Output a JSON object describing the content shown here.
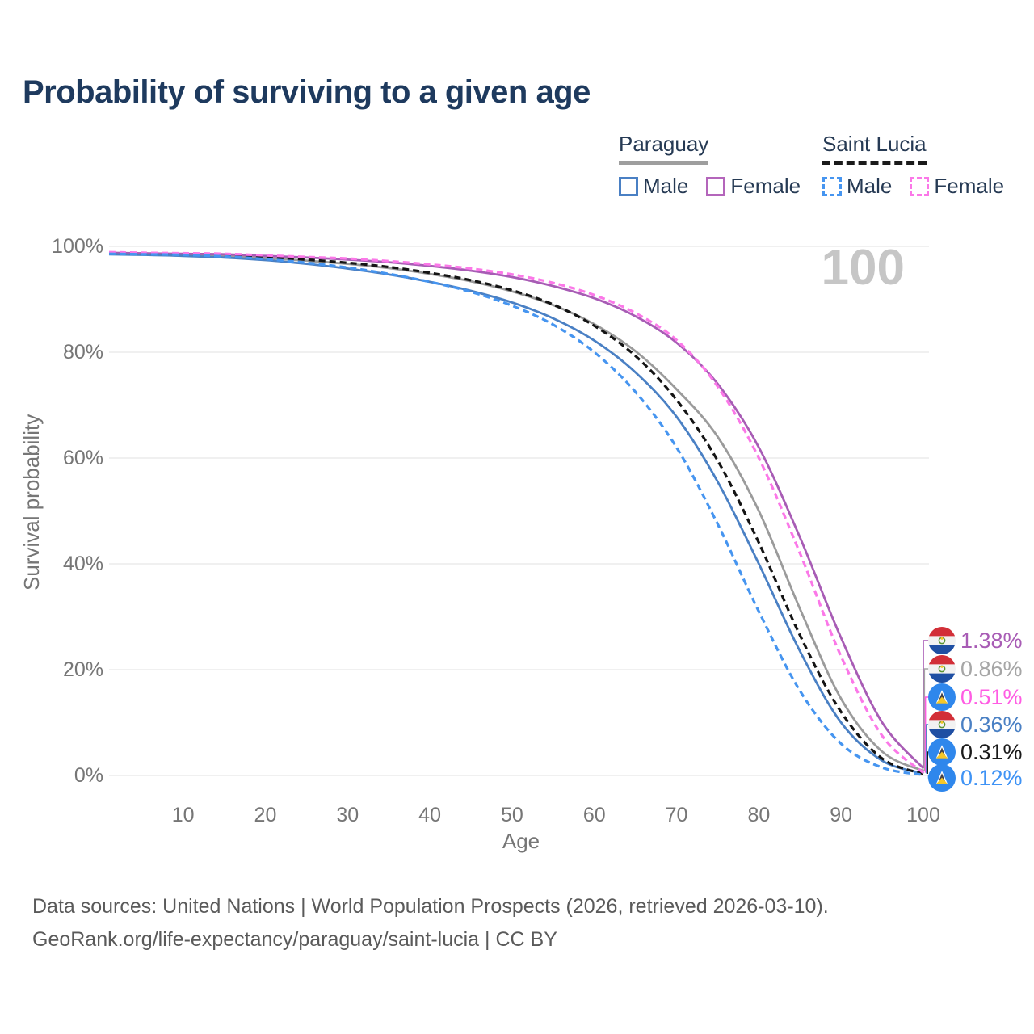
{
  "title": "Probability of surviving to a given age",
  "watermark": "100",
  "legend": {
    "groups": [
      {
        "id": "paraguay",
        "label": "Paraguay",
        "line_style": "solid",
        "underline_color": "#9e9e9e",
        "items": [
          {
            "label": "Male",
            "color": "#4a80c4"
          },
          {
            "label": "Female",
            "color": "#b465bb"
          }
        ]
      },
      {
        "id": "saint-lucia",
        "label": "Saint Lucia",
        "line_style": "dashed",
        "underline_color": "#1a1a1a",
        "items": [
          {
            "label": "Male",
            "color": "#4695f0"
          },
          {
            "label": "Female",
            "color": "#fb78e8"
          }
        ]
      }
    ]
  },
  "axes": {
    "x_title": "Age",
    "y_title": "Survival probability",
    "x_tick_labels": [
      "10",
      "20",
      "30",
      "40",
      "50",
      "60",
      "70",
      "80",
      "90",
      "100"
    ],
    "y_tick_labels": [
      "100%",
      "80%",
      "60%",
      "40%",
      "20%",
      "0%"
    ]
  },
  "chart_data": {
    "type": "line",
    "title": "Probability of surviving to a given age",
    "xlabel": "Age",
    "ylabel": "Survival probability",
    "xlim": [
      1,
      100
    ],
    "ylim": [
      0,
      100
    ],
    "grid": "horizontal-only",
    "legend_position": "top-right",
    "highlighted_age": "100",
    "x": [
      1,
      5,
      10,
      15,
      20,
      25,
      30,
      35,
      40,
      45,
      50,
      55,
      60,
      65,
      70,
      75,
      80,
      85,
      90,
      95,
      100
    ],
    "series": [
      {
        "name": "Paraguay Female",
        "country": "Paraguay",
        "sex": "Female",
        "color": "#a85cb5",
        "dash": "solid",
        "values": [
          98.8,
          98.7,
          98.6,
          98.5,
          98.2,
          97.9,
          97.5,
          97.0,
          96.3,
          95.4,
          94.2,
          92.5,
          90.2,
          86.8,
          81.8,
          74.0,
          62.0,
          45.0,
          26.0,
          10.0,
          1.38
        ]
      },
      {
        "name": "Paraguay Both Sexes",
        "country": "Paraguay",
        "sex": "All",
        "color": "#9b9b9b",
        "dash": "solid",
        "values": [
          98.6,
          98.5,
          98.4,
          98.2,
          97.8,
          97.3,
          96.7,
          95.9,
          94.8,
          93.4,
          91.5,
          88.9,
          85.3,
          80.2,
          73.0,
          64.0,
          50.0,
          31.5,
          14.5,
          4.5,
          0.86
        ]
      },
      {
        "name": "Paraguay Male",
        "country": "Paraguay",
        "sex": "Male",
        "color": "#4a80c4",
        "dash": "solid",
        "values": [
          98.5,
          98.4,
          98.2,
          97.9,
          97.4,
          96.7,
          95.8,
          94.7,
          93.3,
          91.6,
          89.4,
          86.4,
          82.2,
          76.2,
          67.8,
          55.5,
          40.0,
          23.5,
          10.0,
          2.8,
          0.36
        ]
      },
      {
        "name": "Saint Lucia Female",
        "country": "Saint Lucia",
        "sex": "Female",
        "color": "#fb78e8",
        "dash": "dashed",
        "values": [
          98.9,
          98.8,
          98.7,
          98.6,
          98.3,
          98.0,
          97.7,
          97.2,
          96.6,
          95.8,
          94.7,
          93.1,
          90.8,
          87.4,
          82.3,
          73.5,
          60.0,
          42.0,
          22.5,
          7.5,
          0.51
        ]
      },
      {
        "name": "Saint Lucia Both Sexes",
        "country": "Saint Lucia",
        "sex": "All",
        "color": "#141414",
        "dash": "dashed",
        "values": [
          98.7,
          98.6,
          98.5,
          98.3,
          98.0,
          97.5,
          96.9,
          96.1,
          95.0,
          93.6,
          91.7,
          89.0,
          85.0,
          79.3,
          71.0,
          59.5,
          44.0,
          26.5,
          12.0,
          3.2,
          0.31
        ]
      },
      {
        "name": "Saint Lucia Male",
        "country": "Saint Lucia",
        "sex": "Male",
        "color": "#4695f0",
        "dash": "dashed",
        "values": [
          98.6,
          98.5,
          98.4,
          98.1,
          97.6,
          96.9,
          96.0,
          94.8,
          93.3,
          91.4,
          88.8,
          85.2,
          80.0,
          72.5,
          62.0,
          47.5,
          31.0,
          16.0,
          6.0,
          1.5,
          0.12
        ]
      }
    ],
    "end_labels": [
      {
        "value": "1.38%",
        "numeric": 1.38,
        "series": "Paraguay Female",
        "flag": "paraguay",
        "color": "#a85cb5"
      },
      {
        "value": "0.86%",
        "numeric": 0.86,
        "series": "Paraguay Both Sexes",
        "flag": "paraguay",
        "color": "#a6a6a6"
      },
      {
        "value": "0.51%",
        "numeric": 0.51,
        "series": "Saint Lucia Female",
        "flag": "saint-lucia",
        "color": "#ff5ce3"
      },
      {
        "value": "0.36%",
        "numeric": 0.36,
        "series": "Paraguay Male",
        "flag": "paraguay",
        "color": "#4a80c4"
      },
      {
        "value": "0.31%",
        "numeric": 0.31,
        "series": "Saint Lucia Both Sexes",
        "flag": "saint-lucia",
        "color": "#1a1a1a"
      },
      {
        "value": "0.12%",
        "numeric": 0.12,
        "series": "Saint Lucia Male",
        "flag": "saint-lucia",
        "color": "#3f93f5"
      }
    ]
  },
  "footer": {
    "line1": "Data sources: United Nations | World Population Prospects (2026, retrieved 2026-03-10).",
    "line2": "GeoRank.org/life-expectancy/paraguay/saint-lucia | CC BY"
  }
}
